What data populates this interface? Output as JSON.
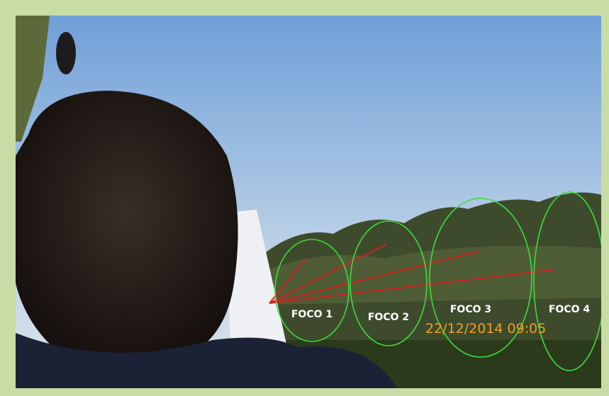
{
  "labels": [
    "FOCO 1",
    "FOCO 2",
    "FOCO 3",
    "FOCO 4"
  ],
  "timestamp": "22/12/2014 09:05"
}
